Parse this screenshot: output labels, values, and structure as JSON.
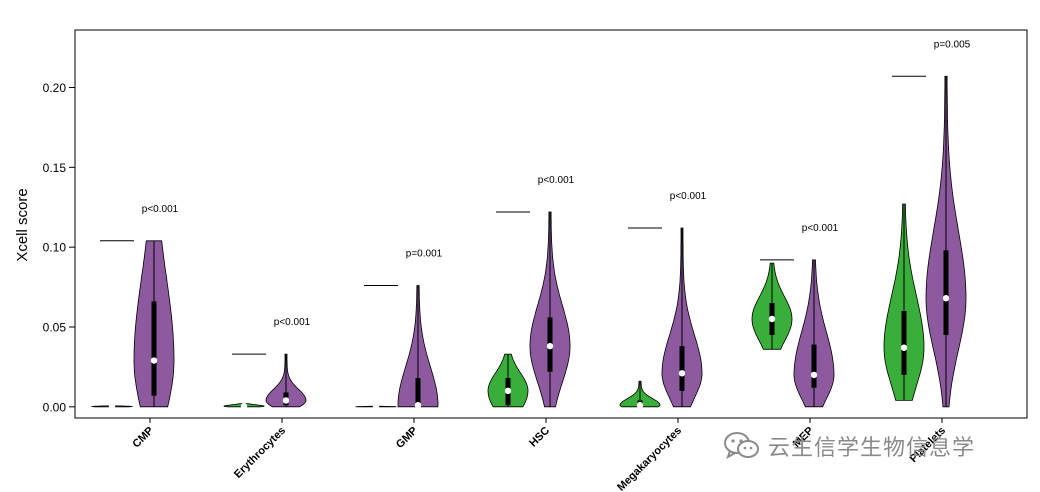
{
  "chart_data": {
    "type": "violin",
    "ylabel": "Xcell score",
    "ylim": [
      -0.007,
      0.236
    ],
    "yticks": [
      0.0,
      0.05,
      0.1,
      0.15,
      0.2
    ],
    "ytick_labels": [
      "0.00",
      "0.05",
      "0.10",
      "0.15",
      "0.20"
    ],
    "colors": {
      "group_a": "#3aae3a",
      "group_b": "#8d5aa0"
    },
    "categories": [
      "CMP",
      "Erythrocytes",
      "GMP",
      "HSC",
      "Megakaryocytes",
      "MEP",
      "Platelets"
    ],
    "pvalues": [
      "p<0.001",
      "p<0.001",
      "p=0.001",
      "p<0.001",
      "p<0.001",
      "p<0.001",
      "p=0.005"
    ],
    "groups": [
      {
        "category": "CMP",
        "a": {
          "min": 0.0,
          "max": 0.0006,
          "q1": 0.0,
          "median": 0.0002,
          "q3": 0.0004
        },
        "b": {
          "min": 0.0,
          "max": 0.104,
          "q1": 0.007,
          "median": 0.029,
          "q3": 0.066
        }
      },
      {
        "category": "Erythrocytes",
        "a": {
          "min": 0.0,
          "max": 0.002,
          "q1": 0.0,
          "median": 0.0004,
          "q3": 0.001
        },
        "b": {
          "min": 0.0,
          "max": 0.033,
          "q1": 0.001,
          "median": 0.004,
          "q3": 0.009
        }
      },
      {
        "category": "GMP",
        "a": {
          "min": 0.0,
          "max": 0.0003,
          "q1": 0.0,
          "median": 0.0001,
          "q3": 0.0002
        },
        "b": {
          "min": 0.0,
          "max": 0.076,
          "q1": 0.0,
          "median": 0.001,
          "q3": 0.018
        }
      },
      {
        "category": "HSC",
        "a": {
          "min": 0.0,
          "max": 0.033,
          "q1": 0.001,
          "median": 0.01,
          "q3": 0.018
        },
        "b": {
          "min": 0.0,
          "max": 0.122,
          "q1": 0.022,
          "median": 0.038,
          "q3": 0.056
        }
      },
      {
        "category": "Megakaryocytes",
        "a": {
          "min": 0.0,
          "max": 0.016,
          "q1": 0.0,
          "median": 0.001,
          "q3": 0.004
        },
        "b": {
          "min": 0.0,
          "max": 0.112,
          "q1": 0.01,
          "median": 0.021,
          "q3": 0.038
        }
      },
      {
        "category": "MEP",
        "a": {
          "min": 0.036,
          "max": 0.09,
          "q1": 0.045,
          "median": 0.055,
          "q3": 0.065
        },
        "b": {
          "min": 0.0,
          "max": 0.092,
          "q1": 0.012,
          "median": 0.02,
          "q3": 0.039
        }
      },
      {
        "category": "Platelets",
        "a": {
          "min": 0.004,
          "max": 0.127,
          "q1": 0.02,
          "median": 0.037,
          "q3": 0.06
        },
        "b": {
          "min": 0.0,
          "max": 0.207,
          "q1": 0.045,
          "median": 0.068,
          "q3": 0.098
        }
      }
    ]
  },
  "watermark": {
    "text": "云生信学生物信息学",
    "icon": "wechat-icon"
  }
}
